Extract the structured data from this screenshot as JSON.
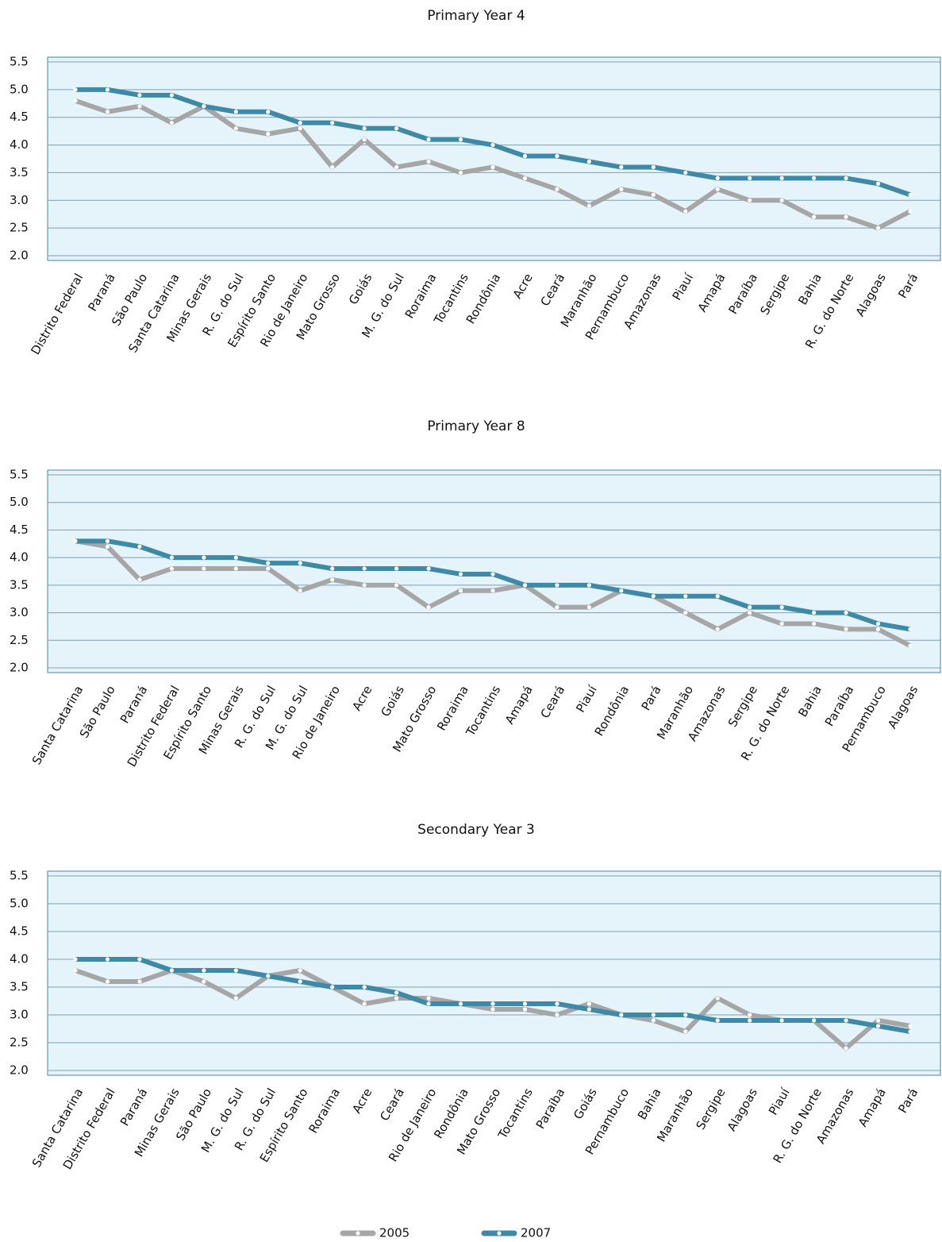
{
  "chart_data": [
    {
      "type": "line",
      "title": "Primary Year 4",
      "categories": [
        "Distrito Federal",
        "Paraná",
        "São Paulo",
        "Santa Catarina",
        "Minas Gerais",
        "R. G. do Sul",
        "Espírito Santo",
        "Rio de Janeiro",
        "Mato Grosso",
        "Goiás",
        "M. G. do Sul",
        "Roraima",
        "Tocantins",
        "Rondônia",
        "Acre",
        "Ceará",
        "Maranhão",
        "Pernambuco",
        "Amazonas",
        "Piauí",
        "Amapá",
        "Paraíba",
        "Sergipe",
        "Bahia",
        "R. G. do Norte",
        "Alagoas",
        "Pará"
      ],
      "series": [
        {
          "name": "2005",
          "color": "#a6a6a6",
          "values": [
            4.8,
            4.6,
            4.7,
            4.4,
            4.7,
            4.3,
            4.2,
            4.3,
            3.6,
            4.1,
            3.6,
            3.7,
            3.5,
            3.6,
            3.4,
            3.2,
            2.9,
            3.2,
            3.1,
            2.8,
            3.2,
            3.0,
            3.0,
            2.7,
            2.7,
            2.5,
            2.8
          ]
        },
        {
          "name": "2007",
          "color": "#3d8aa8",
          "values": [
            5.0,
            5.0,
            4.9,
            4.9,
            4.7,
            4.6,
            4.6,
            4.4,
            4.4,
            4.3,
            4.3,
            4.1,
            4.1,
            4.0,
            3.8,
            3.8,
            3.7,
            3.6,
            3.6,
            3.5,
            3.4,
            3.4,
            3.4,
            3.4,
            3.4,
            3.3,
            3.1
          ]
        }
      ],
      "ylim": [
        2.0,
        5.5
      ],
      "yticks": [
        {
          "value": 2,
          "label": "2.0"
        },
        2.5,
        {
          "value": 3,
          "label": "3.0"
        },
        3.5,
        {
          "value": 4,
          "label": "4.0"
        },
        4.5,
        {
          "value": 5,
          "label": "5.0"
        },
        5.5
      ],
      "grid": true
    },
    {
      "type": "line",
      "title": "Primary Year 8",
      "categories": [
        "Santa Catarina",
        "São Paulo",
        "Paraná",
        "Distrito Federal",
        "Espírito Santo",
        "Minas Gerais",
        "R. G. do Sul",
        "M. G. do Sul",
        "Rio de Janeiro",
        "Acre",
        "Goiás",
        "Mato Grosso",
        "Roraima",
        "Tocantins",
        "Amapá",
        "Ceará",
        "Piauí",
        "Rondônia",
        "Pará",
        "Maranhão",
        "Amazonas",
        "Sergipe",
        "R. G. do Norte",
        "Bahia",
        "Paraíba",
        "Pernambuco",
        "Alagoas"
      ],
      "series": [
        {
          "color": "#a6a6a6",
          "values": [
            4.3,
            4.2,
            3.6,
            3.8,
            3.8,
            3.8,
            3.8,
            3.4,
            3.6,
            3.5,
            3.5,
            3.1,
            3.4,
            3.4,
            3.5,
            3.1,
            3.1,
            3.4,
            3.3,
            3.0,
            2.7,
            3.0,
            2.8,
            2.8,
            2.7,
            2.7,
            2.4
          ]
        },
        {
          "color": "#3d8aa8",
          "values": [
            4.3,
            4.3,
            4.2,
            4.0,
            4.0,
            4.0,
            3.9,
            3.9,
            3.8,
            3.8,
            3.8,
            3.8,
            3.7,
            3.7,
            3.5,
            3.5,
            3.5,
            3.4,
            3.3,
            3.3,
            3.3,
            3.1,
            3.1,
            3.0,
            3.0,
            2.8,
            2.7
          ]
        }
      ],
      "ylim": [
        2.0,
        5.5
      ],
      "yticks": [
        {
          "value": 2,
          "label": "2.0"
        },
        2.5,
        {
          "value": 3,
          "label": "3.0"
        },
        3.5,
        {
          "value": 4,
          "label": "4.0"
        },
        4.5,
        {
          "value": 5,
          "label": "5.0"
        },
        5.5
      ],
      "grid": true
    },
    {
      "type": "line",
      "title": "Secondary Year 3",
      "categories": [
        "Santa Catarina",
        "Distrito Federal",
        "Paraná",
        "Minas Gerais",
        "São Paulo",
        "M. G. do Sul",
        "R. G. do Sul",
        "Espírito Santo",
        "Roraima",
        "Acre",
        "Ceará",
        "Rio de Janeiro",
        "Rondônia",
        "Mato Grosso",
        "Tocantins",
        "Paraíba",
        "Goiás",
        "Pernambuco",
        "Bahia",
        "Maranhão",
        "Sergipe",
        "Alagoas",
        "Piauí",
        "R. G. do Norte",
        "Amazonas",
        "Amapá",
        "Pará"
      ],
      "series": [
        {
          "color": "#a6a6a6",
          "values": [
            3.8,
            3.6,
            3.6,
            3.8,
            3.6,
            3.3,
            3.7,
            3.8,
            3.5,
            3.2,
            3.3,
            3.3,
            3.2,
            3.1,
            3.1,
            3.0,
            3.2,
            3.0,
            2.9,
            2.7,
            3.3,
            3.0,
            2.9,
            2.9,
            2.4,
            2.9,
            2.8
          ]
        },
        {
          "color": "#3d8aa8",
          "values": [
            4.0,
            4.0,
            4.0,
            3.8,
            3.8,
            3.8,
            3.7,
            3.6,
            3.5,
            3.5,
            3.4,
            3.2,
            3.2,
            3.2,
            3.2,
            3.2,
            3.1,
            3.0,
            3.0,
            3.0,
            2.9,
            2.9,
            2.9,
            2.9,
            2.9,
            2.8,
            2.7
          ]
        }
      ],
      "ylim": [
        2.0,
        5.5
      ],
      "yticks": [
        {
          "value": 2,
          "label": "2.0"
        },
        2.5,
        {
          "value": 3,
          "label": "3.0"
        },
        3.5,
        {
          "value": 4,
          "label": "4.0"
        },
        4.5,
        {
          "value": 5,
          "label": "5.0"
        },
        5.5
      ],
      "grid": true
    }
  ]
}
